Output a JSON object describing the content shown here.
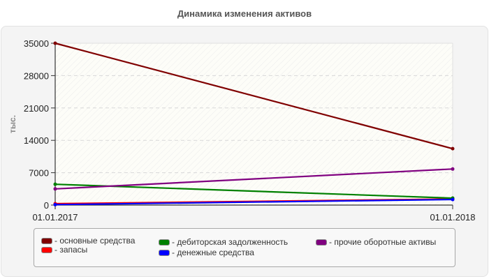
{
  "title": "Динамика изменения активов",
  "chart_data": {
    "type": "line",
    "title": "Динамика изменения активов",
    "xlabel": "",
    "ylabel": "тыс.",
    "x": [
      "01.01.2017",
      "01.01.2018"
    ],
    "ylim": [
      0,
      35000
    ],
    "yticks": [
      0,
      7000,
      14000,
      21000,
      28000,
      35000
    ],
    "grid": true,
    "legend_position": "bottom",
    "series": [
      {
        "name": "основные средства",
        "color": "#800000",
        "values": [
          35000,
          12200
        ]
      },
      {
        "name": "запасы",
        "color": "#ff0000",
        "values": [
          300,
          1300
        ]
      },
      {
        "name": "дебиторская задолженность",
        "color": "#008000",
        "values": [
          4500,
          1500
        ]
      },
      {
        "name": "денежные средства",
        "color": "#0000ff",
        "values": [
          100,
          1200
        ]
      },
      {
        "name": "прочие оборотные активы",
        "color": "#800080",
        "values": [
          3500,
          7800
        ]
      }
    ]
  },
  "legend": [
    {
      "label": "- основные средства",
      "color": "#800000"
    },
    {
      "label": "- запасы",
      "color": "#ff0000"
    },
    {
      "label": "- дебиторская задолженность",
      "color": "#008000"
    },
    {
      "label": "- денежные средства",
      "color": "#0000ff"
    },
    {
      "label": "- прочие оборотные активы",
      "color": "#800080"
    }
  ]
}
